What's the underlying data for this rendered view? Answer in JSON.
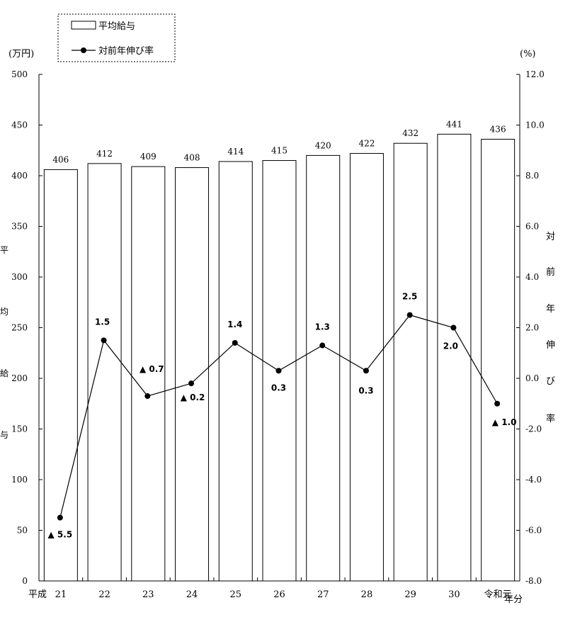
{
  "chart_data": {
    "type": "bar+line",
    "categories": [
      "21",
      "22",
      "23",
      "24",
      "25",
      "26",
      "27",
      "28",
      "29",
      "30",
      "令和元"
    ],
    "era_label": "平成",
    "x_unit": "年分",
    "bar_series": {
      "name": "平均給与",
      "values": [
        406,
        412,
        409,
        408,
        414,
        415,
        420,
        422,
        432,
        441,
        436
      ],
      "labels": [
        "406",
        "412",
        "409",
        "408",
        "414",
        "415",
        "420",
        "422",
        "432",
        "441",
        "436"
      ]
    },
    "line_series": {
      "name": "対前年伸び率",
      "values": [
        -5.5,
        1.5,
        -0.7,
        -0.2,
        1.4,
        0.3,
        1.3,
        0.3,
        2.5,
        2.0,
        -1.0
      ],
      "labels": [
        "▲ 5.5",
        "1.5",
        "▲ 0.7",
        "▲ 0.2",
        "1.4",
        "0.3",
        "1.3",
        "0.3",
        "2.5",
        "2.0",
        "▲ 1.0"
      ]
    },
    "left_axis": {
      "unit_label": "(万円)",
      "title_chars": [
        "平",
        "均",
        "給",
        "与"
      ],
      "ylim": [
        0,
        500
      ],
      "ticks": [
        0,
        50,
        100,
        150,
        200,
        250,
        300,
        350,
        400,
        450,
        500
      ],
      "tick_labels": [
        "0",
        "50",
        "100",
        "150",
        "200",
        "250",
        "300",
        "350",
        "400",
        "450",
        "500"
      ]
    },
    "right_axis": {
      "unit_label": "(%)",
      "title_chars": [
        "対",
        "前",
        "年",
        "伸",
        "び",
        "率"
      ],
      "ylim": [
        -8.0,
        12.0
      ],
      "ticks": [
        -8,
        -6,
        -4,
        -2,
        0,
        2,
        4,
        6,
        8,
        10,
        12
      ],
      "tick_labels": [
        "-8.0",
        "-6.0",
        "-4.0",
        "-2.0",
        "0.0",
        "2.0",
        "4.0",
        "6.0",
        "8.0",
        "10.0",
        "12.0"
      ]
    },
    "legend": {
      "placement": "top-left",
      "items": [
        "平均給与",
        "対前年伸び率"
      ]
    },
    "grid": false
  }
}
